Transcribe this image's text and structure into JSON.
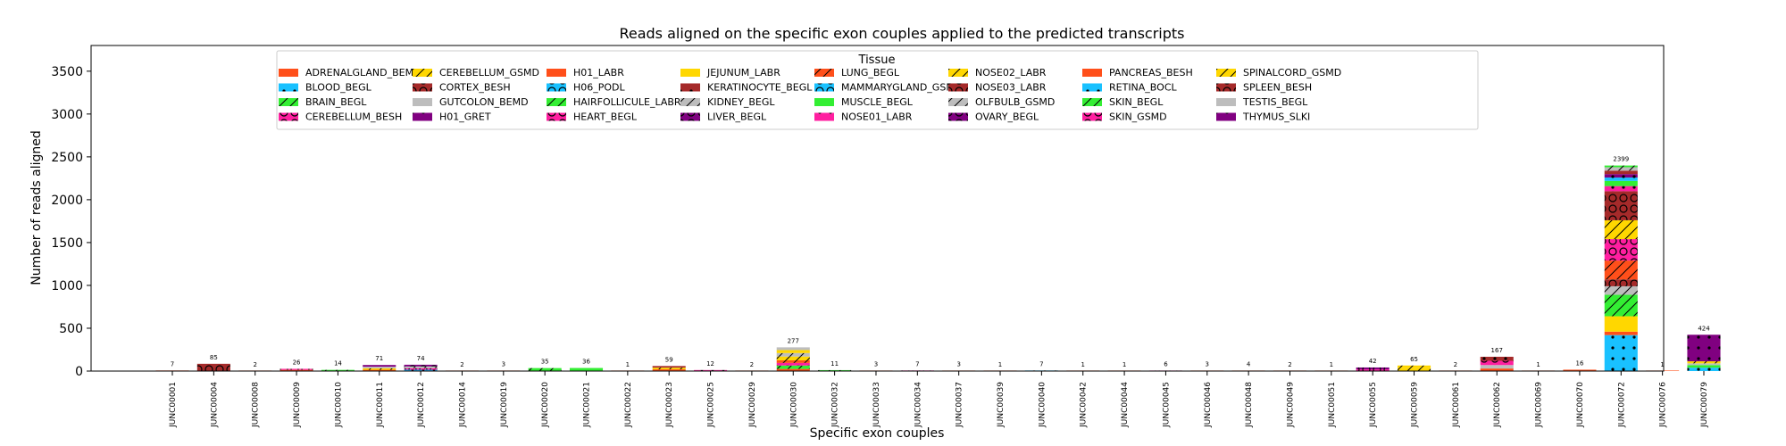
{
  "chart_data": {
    "type": "bar",
    "stacked": true,
    "title": "Reads aligned on the specific exon couples applied to the predicted transcripts",
    "xlabel": "Specific exon couples",
    "ylabel": "Number of reads aligned",
    "ylim": [
      0,
      3800
    ],
    "yticks": [
      0,
      500,
      1000,
      1500,
      2000,
      2500,
      3000,
      3500
    ],
    "grid": false,
    "legend": {
      "title": "Tissue",
      "placement": "top-center",
      "columns": 9,
      "entries": [
        {
          "name": "ADRENALGLAND_BEMD",
          "color": "#ff4f1a",
          "hatch": "none"
        },
        {
          "name": "BLOOD_BEGL",
          "color": "#19c1ff",
          "hatch": "dot"
        },
        {
          "name": "BRAIN_BEGL",
          "color": "#33ee33",
          "hatch": "slash"
        },
        {
          "name": "CEREBELLUM_BESH",
          "color": "#ff1fa0",
          "hatch": "circle"
        },
        {
          "name": "CEREBELLUM_GSMD",
          "color": "#ffd700",
          "hatch": "slash"
        },
        {
          "name": "CORTEX_BESH",
          "color": "#a52a2a",
          "hatch": "circle"
        },
        {
          "name": "GUTCOLON_BEMD",
          "color": "#bdbdbd",
          "hatch": "none"
        },
        {
          "name": "H01_GRET",
          "color": "#800080",
          "hatch": "dot"
        },
        {
          "name": "H01_LABR",
          "color": "#ff4f1a",
          "hatch": "none"
        },
        {
          "name": "H06_PODL",
          "color": "#19c1ff",
          "hatch": "circle"
        },
        {
          "name": "HAIRFOLLICULE_LABR",
          "color": "#33ee33",
          "hatch": "slash"
        },
        {
          "name": "HEART_BEGL",
          "color": "#ff1fa0",
          "hatch": "circle"
        },
        {
          "name": "JEJUNUM_LABR",
          "color": "#ffd700",
          "hatch": "none"
        },
        {
          "name": "KERATINOCYTE_BEGL",
          "color": "#a52a2a",
          "hatch": "dot"
        },
        {
          "name": "KIDNEY_BEGL",
          "color": "#bdbdbd",
          "hatch": "slash"
        },
        {
          "name": "LIVER_BEGL",
          "color": "#800080",
          "hatch": "circle"
        },
        {
          "name": "LUNG_BEGL",
          "color": "#ff4f1a",
          "hatch": "slash"
        },
        {
          "name": "MAMMARYGLAND_GSMD",
          "color": "#19c1ff",
          "hatch": "circle"
        },
        {
          "name": "MUSCLE_BEGL",
          "color": "#33ee33",
          "hatch": "none"
        },
        {
          "name": "NOSE01_LABR",
          "color": "#ff1fa0",
          "hatch": "dot"
        },
        {
          "name": "NOSE02_LABR",
          "color": "#ffd700",
          "hatch": "slash"
        },
        {
          "name": "NOSE03_LABR",
          "color": "#a52a2a",
          "hatch": "circle"
        },
        {
          "name": "OLFBULB_GSMD",
          "color": "#bdbdbd",
          "hatch": "slash"
        },
        {
          "name": "OVARY_BEGL",
          "color": "#800080",
          "hatch": "circle"
        },
        {
          "name": "PANCREAS_BESH",
          "color": "#ff4f1a",
          "hatch": "none"
        },
        {
          "name": "RETINA_BOCL",
          "color": "#19c1ff",
          "hatch": "dot"
        },
        {
          "name": "SKIN_BEGL",
          "color": "#33ee33",
          "hatch": "slash"
        },
        {
          "name": "SKIN_GSMD",
          "color": "#ff1fa0",
          "hatch": "circle"
        },
        {
          "name": "SPINALCORD_GSMD",
          "color": "#ffd700",
          "hatch": "slash"
        },
        {
          "name": "SPLEEN_BESH",
          "color": "#a52a2a",
          "hatch": "circle"
        },
        {
          "name": "TESTIS_BEGL",
          "color": "#bdbdbd",
          "hatch": "none"
        },
        {
          "name": "THYMUS_SLKI",
          "color": "#800080",
          "hatch": "dot"
        }
      ]
    },
    "categories": [
      "JUNC00001",
      "JUNC00004",
      "JUNC00008",
      "JUNC00009",
      "JUNC00010",
      "JUNC00011",
      "JUNC00012",
      "JUNC00014",
      "JUNC00019",
      "JUNC00020",
      "JUNC00021",
      "JUNC00022",
      "JUNC00023",
      "JUNC00025",
      "JUNC00029",
      "JUNC00030",
      "JUNC00032",
      "JUNC00033",
      "JUNC00034",
      "JUNC00037",
      "JUNC00039",
      "JUNC00040",
      "JUNC00042",
      "JUNC00044",
      "JUNC00045",
      "JUNC00046",
      "JUNC00048",
      "JUNC00049",
      "JUNC00051",
      "JUNC00055",
      "JUNC00059",
      "JUNC00061",
      "JUNC00062",
      "JUNC00069",
      "JUNC00070",
      "JUNC00072",
      "JUNC00076",
      "JUNC00079"
    ],
    "totals": [
      7,
      85,
      2,
      26,
      14,
      71,
      74,
      2,
      3,
      35,
      36,
      1,
      59,
      12,
      2,
      277,
      11,
      3,
      7,
      3,
      1,
      7,
      1,
      1,
      6,
      3,
      4,
      2,
      1,
      42,
      65,
      2,
      167,
      1,
      16,
      2399,
      1,
      424
    ],
    "segments": [
      [
        {
          "t": 0,
          "v": 7
        }
      ],
      [
        {
          "t": 5,
          "v": 85
        }
      ],
      [
        {
          "t": 0,
          "v": 2
        }
      ],
      [
        {
          "t": 0,
          "v": 14
        },
        {
          "t": 3,
          "v": 12
        }
      ],
      [
        {
          "t": 2,
          "v": 14
        }
      ],
      [
        {
          "t": 0,
          "v": 15
        },
        {
          "t": 4,
          "v": 18
        },
        {
          "t": 6,
          "v": 18
        },
        {
          "t": 7,
          "v": 20
        }
      ],
      [
        {
          "t": 1,
          "v": 16
        },
        {
          "t": 3,
          "v": 18
        },
        {
          "t": 14,
          "v": 20
        },
        {
          "t": 15,
          "v": 20
        }
      ],
      [
        {
          "t": 0,
          "v": 2
        }
      ],
      [
        {
          "t": 0,
          "v": 3
        }
      ],
      [
        {
          "t": 2,
          "v": 35
        }
      ],
      [
        {
          "t": 18,
          "v": 36
        }
      ],
      [
        {
          "t": 0,
          "v": 1
        }
      ],
      [
        {
          "t": 8,
          "v": 20
        },
        {
          "t": 4,
          "v": 20
        },
        {
          "t": 13,
          "v": 19
        }
      ],
      [
        {
          "t": 19,
          "v": 12
        }
      ],
      [
        {
          "t": 0,
          "v": 2
        }
      ],
      [
        {
          "t": 0,
          "v": 25
        },
        {
          "t": 2,
          "v": 40
        },
        {
          "t": 11,
          "v": 30
        },
        {
          "t": 16,
          "v": 30
        },
        {
          "t": 20,
          "v": 45
        },
        {
          "t": 22,
          "v": 40
        },
        {
          "t": 12,
          "v": 35
        },
        {
          "t": 30,
          "v": 32
        }
      ],
      [
        {
          "t": 10,
          "v": 11
        }
      ],
      [
        {
          "t": 0,
          "v": 3
        }
      ],
      [
        {
          "t": 3,
          "v": 7
        }
      ],
      [
        {
          "t": 0,
          "v": 3
        }
      ],
      [
        {
          "t": 0,
          "v": 1
        }
      ],
      [
        {
          "t": 1,
          "v": 7
        }
      ],
      [
        {
          "t": 0,
          "v": 1
        }
      ],
      [
        {
          "t": 0,
          "v": 1
        }
      ],
      [
        {
          "t": 27,
          "v": 6
        }
      ],
      [
        {
          "t": 0,
          "v": 3
        }
      ],
      [
        {
          "t": 0,
          "v": 4
        }
      ],
      [
        {
          "t": 0,
          "v": 2
        }
      ],
      [
        {
          "t": 0,
          "v": 1
        }
      ],
      [
        {
          "t": 3,
          "v": 20
        },
        {
          "t": 15,
          "v": 22
        }
      ],
      [
        {
          "t": 4,
          "v": 40
        },
        {
          "t": 28,
          "v": 25
        }
      ],
      [
        {
          "t": 0,
          "v": 2
        }
      ],
      [
        {
          "t": 0,
          "v": 30
        },
        {
          "t": 6,
          "v": 40
        },
        {
          "t": 11,
          "v": 50
        },
        {
          "t": 13,
          "v": 47
        }
      ],
      [
        {
          "t": 0,
          "v": 1
        }
      ],
      [
        {
          "t": 0,
          "v": 16
        }
      ],
      [
        {
          "t": 1,
          "v": 420
        },
        {
          "t": 0,
          "v": 40
        },
        {
          "t": 12,
          "v": 180
        },
        {
          "t": 26,
          "v": 250
        },
        {
          "t": 14,
          "v": 100
        },
        {
          "t": 21,
          "v": 80
        },
        {
          "t": 16,
          "v": 220
        },
        {
          "t": 3,
          "v": 250
        },
        {
          "t": 28,
          "v": 220
        },
        {
          "t": 5,
          "v": 339
        },
        {
          "t": 19,
          "v": 60
        },
        {
          "t": 18,
          "v": 60
        },
        {
          "t": 25,
          "v": 40
        },
        {
          "t": 7,
          "v": 40
        },
        {
          "t": 13,
          "v": 40
        },
        {
          "t": 22,
          "v": 40
        },
        {
          "t": 2,
          "v": 20
        }
      ],
      [
        {
          "t": 0,
          "v": 1
        }
      ],
      [
        {
          "t": 1,
          "v": 40
        },
        {
          "t": 18,
          "v": 30
        },
        {
          "t": 6,
          "v": 20
        },
        {
          "t": 4,
          "v": 24
        },
        {
          "t": 7,
          "v": 310
        }
      ]
    ]
  }
}
